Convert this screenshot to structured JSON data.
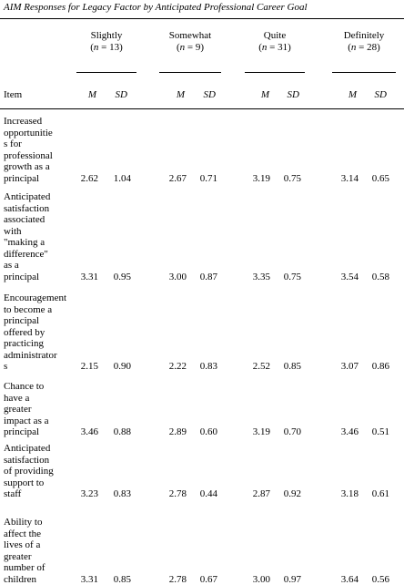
{
  "title": "AIM Responses for Legacy Factor by Anticipated Professional Career Goal",
  "header": {
    "item_label": "Item",
    "groups": [
      {
        "name": "Slightly",
        "n_text": "n",
        "n_value": " = 13)"
      },
      {
        "name": "Somewhat",
        "n_text": "n",
        "n_value": " = 9)"
      },
      {
        "name": "Quite",
        "n_text": "n",
        "n_value": " = 31)"
      },
      {
        "name": "Definitely",
        "n_text": "n",
        "n_value": " = 28)"
      }
    ],
    "m_label": "M",
    "sd_label": "SD"
  },
  "rows": [
    {
      "lines": [
        "Increased",
        "opportunitie",
        "s for",
        "professional",
        "growth as a",
        "principal"
      ],
      "values": [
        "2.62",
        "1.04",
        "2.67",
        "0.71",
        "3.19",
        "0.75",
        "3.14",
        "0.65"
      ]
    },
    {
      "lines": [
        "Anticipated",
        "satisfaction",
        "associated",
        "with",
        "\"making a",
        "difference\"",
        "as a",
        "principal"
      ],
      "values": [
        "3.31",
        "0.95",
        "3.00",
        "0.87",
        "3.35",
        "0.75",
        "3.54",
        "0.58"
      ]
    },
    {
      "lines": [
        "Encouragement",
        "to become a",
        "principal",
        "offered by",
        "practicing",
        "administrator",
        "s"
      ],
      "values": [
        "2.15",
        "0.90",
        "2.22",
        "0.83",
        "2.52",
        "0.85",
        "3.07",
        "0.86"
      ]
    },
    {
      "lines": [
        "Chance to",
        "have a",
        "greater",
        "impact as a",
        "principal"
      ],
      "values": [
        "3.46",
        "0.88",
        "2.89",
        "0.60",
        "3.19",
        "0.70",
        "3.46",
        "0.51"
      ]
    },
    {
      "lines": [
        "Anticipated",
        "satisfaction",
        "of providing",
        "support to",
        "staff"
      ],
      "values": [
        "3.23",
        "0.83",
        "2.78",
        "0.44",
        "2.87",
        "0.92",
        "3.18",
        "0.61"
      ]
    },
    {
      "lines": [
        "Ability to",
        "affect the",
        "lives of a",
        "greater",
        "number of",
        "children"
      ],
      "values": [
        "3.31",
        "0.85",
        "2.78",
        "0.67",
        "3.00",
        "0.97",
        "3.64",
        "0.56"
      ]
    }
  ]
}
